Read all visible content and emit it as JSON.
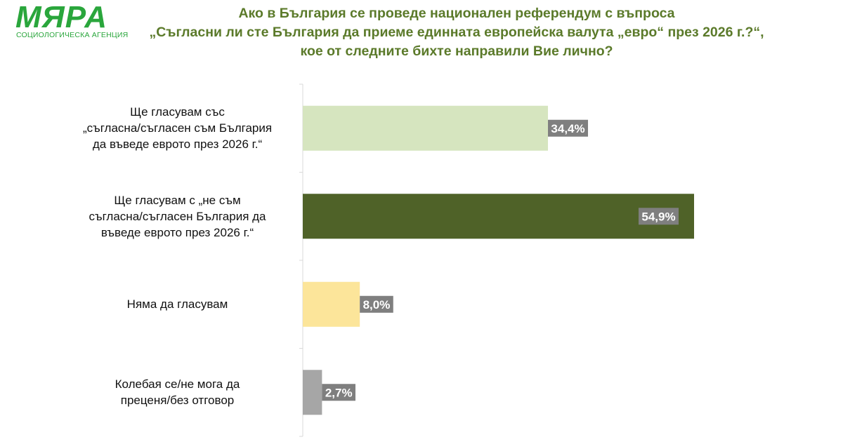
{
  "logo": {
    "word": "МЯРА",
    "subtitle": "СОЦИОЛОГИЧЕСКА АГЕНЦИЯ"
  },
  "title_lines": [
    "Ако в България се проведе национален референдум с въпроса",
    "„Съгласни ли сте България да приеме единната европейска валута „евро“ през 2026 г.?“,",
    "кое от следните бихте направили Вие лично?"
  ],
  "colors": {
    "title": "#5b7a2a",
    "logo": "#2aa63c",
    "label_box": "#7f7f7f"
  },
  "chart_data": {
    "type": "bar",
    "orientation": "horizontal",
    "categories": [
      [
        "Ще гласувам със",
        "„съгласна/съгласен съм България",
        "да въведе еврото през 2026 г.“"
      ],
      [
        "Ще гласувам с „не съм",
        "съгласна/съгласен България да",
        "въведе еврото през 2026 г.“"
      ],
      [
        "Няма да гласувам"
      ],
      [
        "Колебая се/не мога да",
        "преценя/без отговор"
      ]
    ],
    "values": [
      34.4,
      54.9,
      8.0,
      2.7
    ],
    "value_labels": [
      "34,4%",
      "54,9%",
      "8,0%",
      "2,7%"
    ],
    "bar_colors": [
      "#d6e5bf",
      "#4f6228",
      "#fce59a",
      "#a6a6a6"
    ],
    "xlim": [
      0,
      60
    ],
    "grid": false,
    "legend": "none"
  }
}
